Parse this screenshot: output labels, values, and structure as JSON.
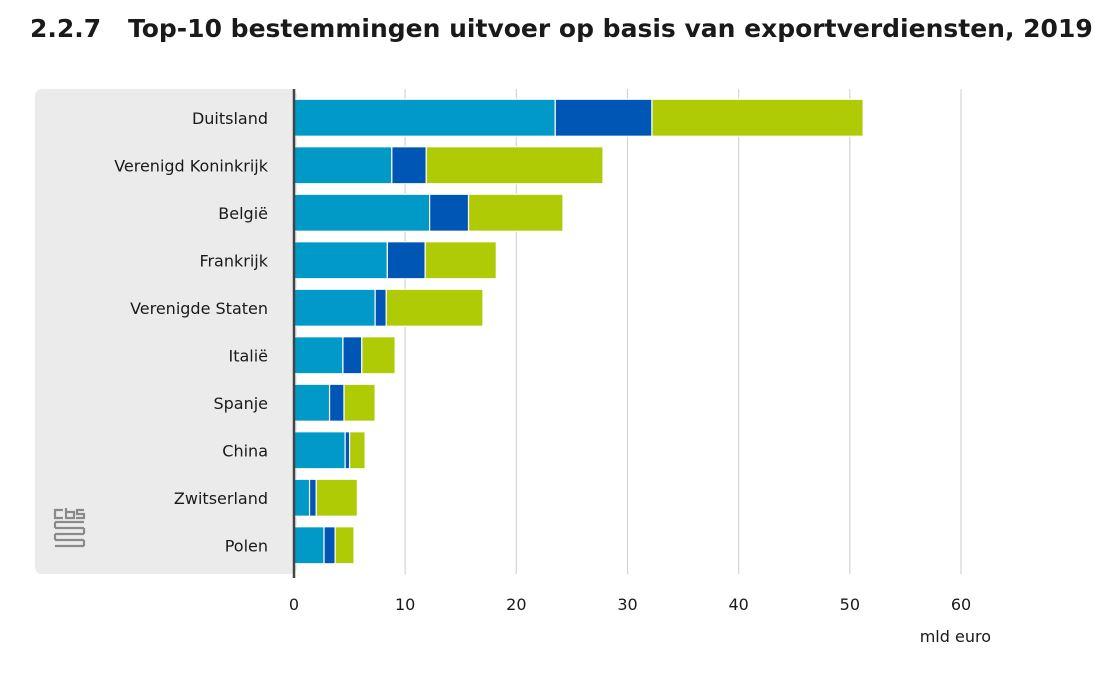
{
  "title_number": "2.2.7",
  "title": "Top-10 bestemmingen uitvoer op basis van exportverdiensten, 2019",
  "logo_text": "cbs",
  "chart_data": {
    "type": "bar",
    "orientation": "horizontal",
    "stacked": true,
    "categories": [
      "Duitsland",
      "Verenigd Koninkrijk",
      "België",
      "Frankrijk",
      "Verenigde Staten",
      "Italië",
      "Spanje",
      "China",
      "Zwitserland",
      "Polen"
    ],
    "series": [
      {
        "color": "#0099c8",
        "values": [
          23.5,
          8.8,
          12.2,
          8.4,
          7.3,
          4.4,
          3.2,
          4.6,
          1.4,
          2.7
        ]
      },
      {
        "color": "#0056b4",
        "values": [
          8.7,
          3.1,
          3.5,
          3.4,
          1.0,
          1.7,
          1.3,
          0.4,
          0.6,
          1.0
        ]
      },
      {
        "color": "#afcb05",
        "values": [
          19.0,
          15.9,
          8.5,
          6.4,
          8.7,
          3.0,
          2.8,
          1.4,
          3.7,
          1.7
        ]
      }
    ],
    "xlim": [
      0,
      60
    ],
    "xticks": [
      0,
      10,
      20,
      30,
      40,
      50,
      60
    ],
    "xunit": "mld euro",
    "grid": true
  }
}
